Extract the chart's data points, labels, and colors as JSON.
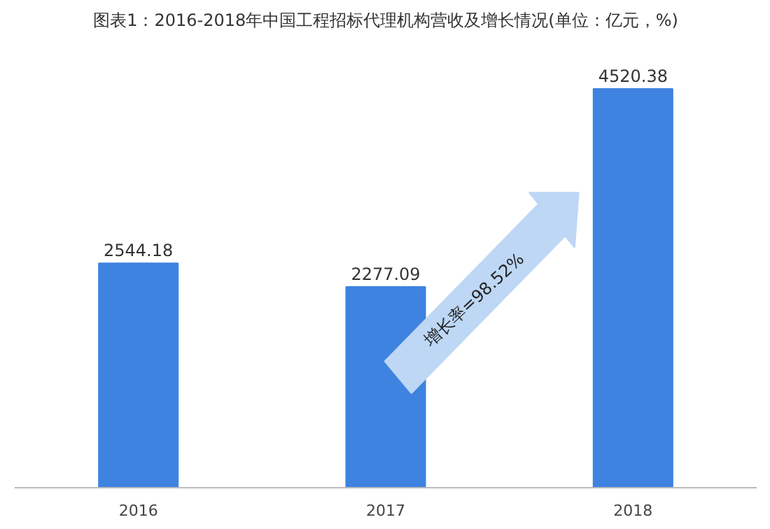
{
  "chart_data": {
    "type": "bar",
    "title": "图表1：2016-2018年中国工程招标代理机构营收及增长情况(单位：亿元，%)",
    "categories": [
      "2016",
      "2017",
      "2018"
    ],
    "values": [
      2544.18,
      2277.09,
      4520.38
    ],
    "color": "#3f83e0",
    "data_labels": true,
    "grid": false,
    "tick_labels": "x",
    "annotations": [
      "增长率=98.52%"
    ]
  }
}
